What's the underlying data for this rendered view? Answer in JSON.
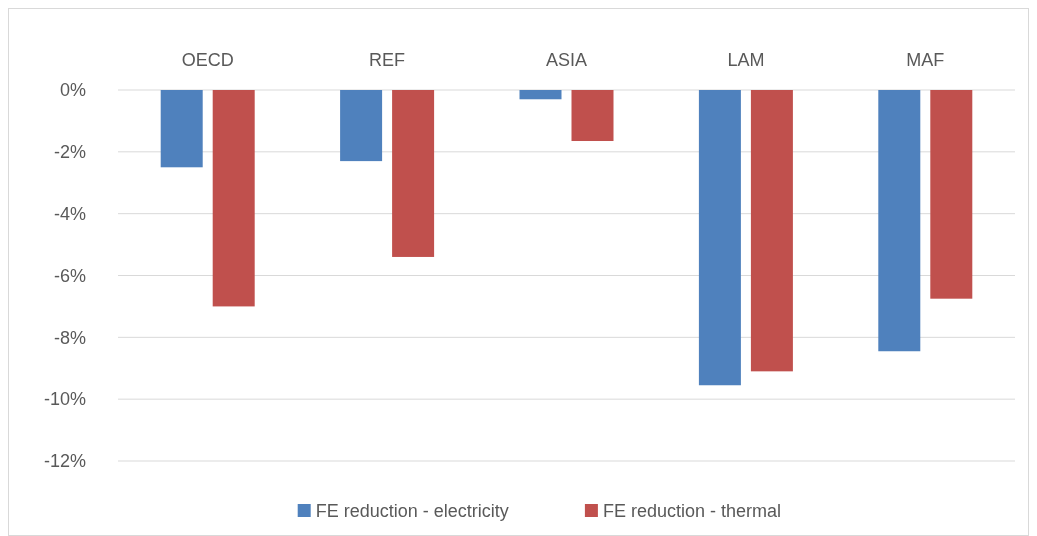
{
  "chart_data": {
    "type": "bar",
    "categories": [
      "OECD",
      "REF",
      "ASIA",
      "LAM",
      "MAF"
    ],
    "series": [
      {
        "name": "FE reduction - electricity",
        "color": "#4f81bd",
        "values": [
          -2.5,
          -2.3,
          -0.3,
          -9.55,
          -8.45
        ]
      },
      {
        "name": "FE reduction - thermal",
        "color": "#c0504d",
        "values": [
          -7.0,
          -5.4,
          -1.65,
          -9.1,
          -6.75
        ]
      }
    ],
    "ylim": [
      -12,
      0
    ],
    "yticks": [
      {
        "value": 0,
        "label": "0%"
      },
      {
        "value": -2,
        "label": "-2%"
      },
      {
        "value": -4,
        "label": "-4%"
      },
      {
        "value": -6,
        "label": "-6%"
      },
      {
        "value": -8,
        "label": "-8%"
      },
      {
        "value": -10,
        "label": "-10%"
      },
      {
        "value": -12,
        "label": "-12%"
      }
    ],
    "grid": "y",
    "legend": "bottom"
  }
}
